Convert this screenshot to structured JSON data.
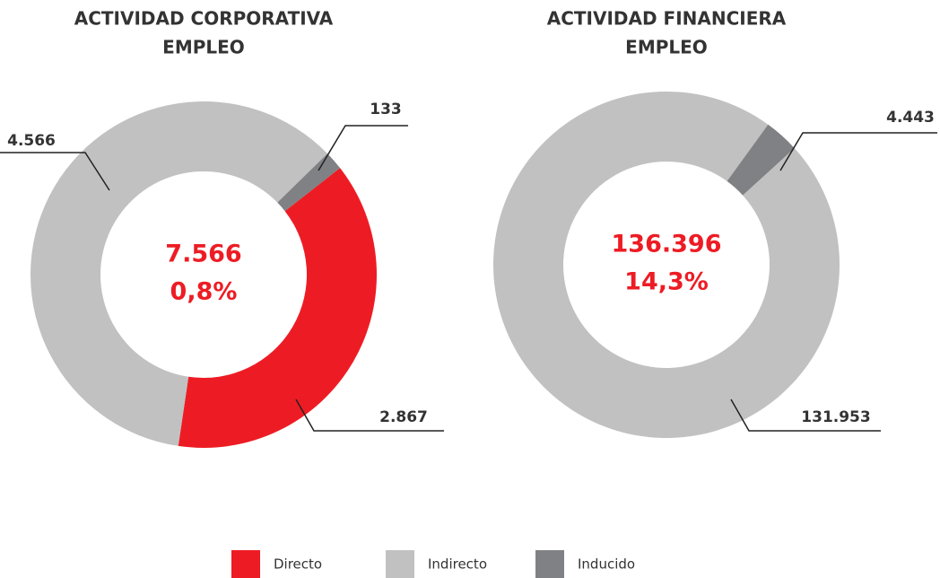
{
  "chart_data": [
    {
      "type": "donut",
      "title": "ACTIVIDAD CORPORATIVA",
      "subtitle": "EMPLEO",
      "categories": [
        "Directo",
        "Indirecto",
        "Inducido"
      ],
      "colors": [
        "#ed1c24",
        "#c1c1c1",
        "#808184"
      ],
      "values": [
        2867,
        4566,
        133
      ],
      "value_labels": [
        "2.867",
        "4.566",
        "133"
      ],
      "center_labels": [
        "7.566",
        "0,8%"
      ]
    },
    {
      "type": "donut",
      "title": "ACTIVIDAD FINANCIERA",
      "subtitle": "EMPLEO",
      "categories": [
        "Indirecto",
        "Inducido"
      ],
      "colors": [
        "#c1c1c1",
        "#808184"
      ],
      "values": [
        131953,
        4443
      ],
      "value_labels": [
        "131.953",
        "4.443"
      ],
      "center_labels": [
        "136.396",
        "14,3%"
      ]
    }
  ],
  "legend": {
    "categories": [
      "Directo",
      "Indirecto",
      "Inducido"
    ],
    "colors": [
      "#ed1c24",
      "#c1c1c1",
      "#808184"
    ]
  }
}
